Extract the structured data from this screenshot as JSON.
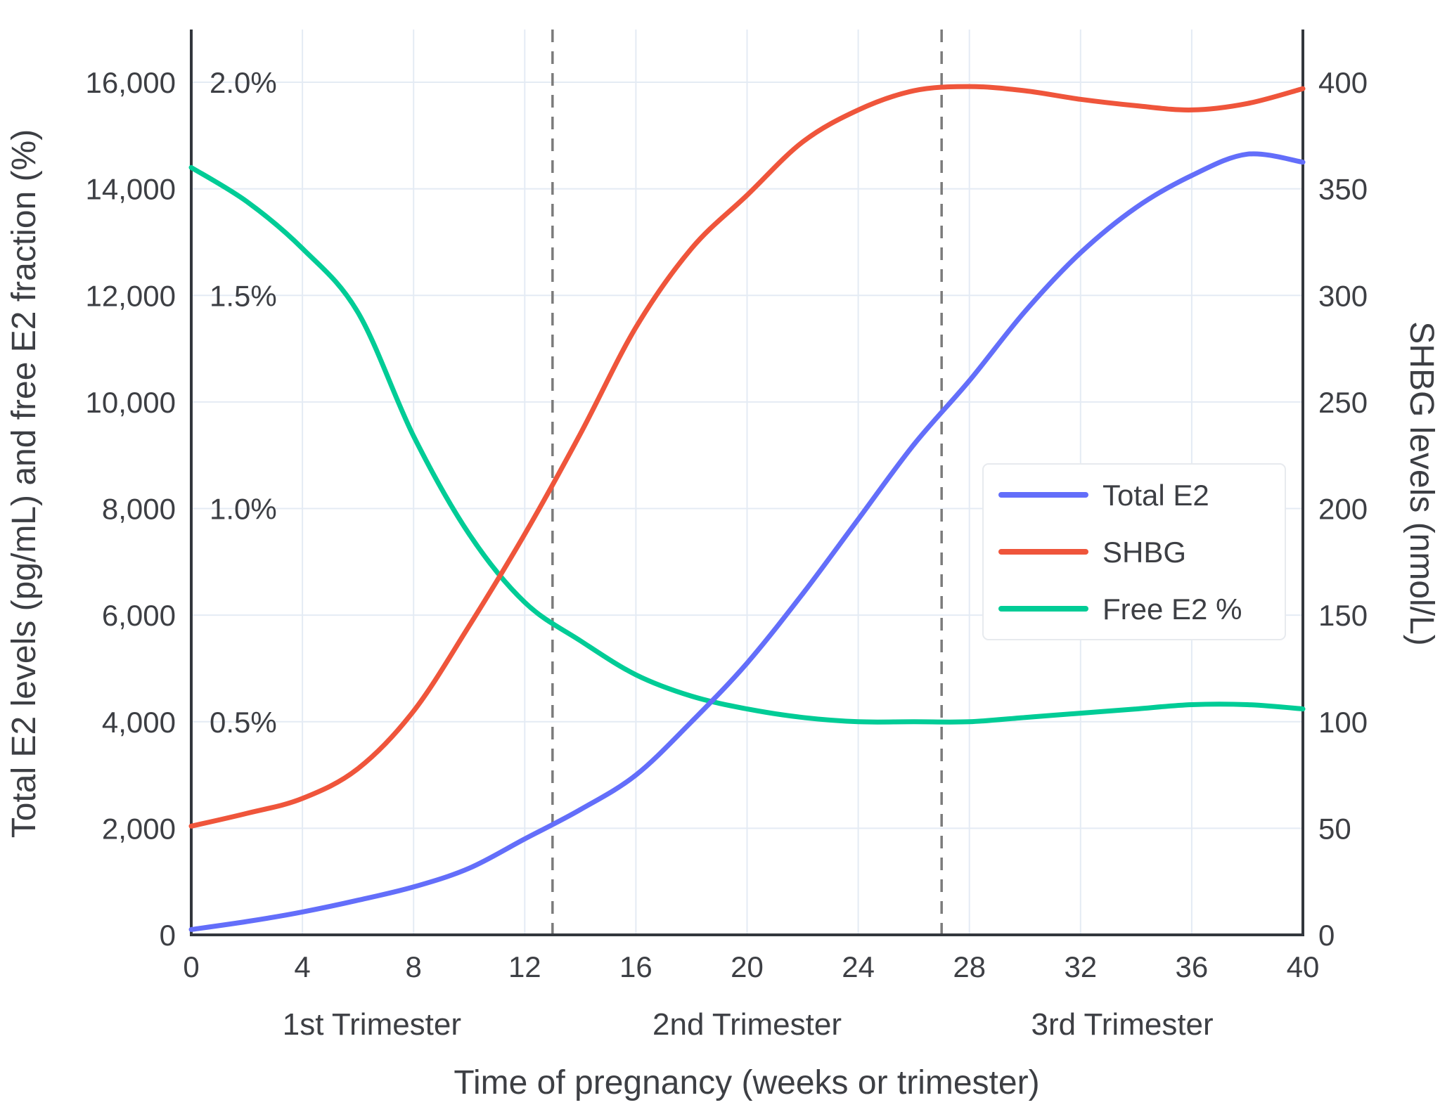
{
  "chart_data": {
    "type": "line",
    "title": "",
    "xlabel": "Time of pregnancy (weeks or trimester)",
    "ylabel_left": "Total E2 levels (pg/mL) and free E2 fraction (%)",
    "ylabel_right": "SHBG levels (nmol/L)",
    "x_range": [
      0,
      40
    ],
    "y_left_range": [
      0,
      16000
    ],
    "y_right_range": [
      0,
      400
    ],
    "y_percent_range": [
      0,
      2.0
    ],
    "grid": true,
    "x_ticks": [
      0,
      4,
      8,
      12,
      16,
      20,
      24,
      28,
      32,
      36,
      40
    ],
    "x_tick_labels": [
      "0",
      "4",
      "8",
      "12",
      "16",
      "20",
      "24",
      "28",
      "32",
      "36",
      "40"
    ],
    "y_left_ticks": [
      0,
      2000,
      4000,
      6000,
      8000,
      10000,
      12000,
      14000,
      16000
    ],
    "y_left_tick_labels": [
      "0",
      "2,000",
      "4,000",
      "6,000",
      "8,000",
      "10,000",
      "12,000",
      "14,000",
      "16,000"
    ],
    "y_right_ticks": [
      0,
      50,
      100,
      150,
      200,
      250,
      300,
      350,
      400
    ],
    "y_right_tick_labels": [
      "0",
      "50",
      "100",
      "150",
      "200",
      "250",
      "300",
      "350",
      "400"
    ],
    "percent_ticks": [
      {
        "percent": 0.5,
        "label": "0.5%"
      },
      {
        "percent": 1.0,
        "label": "1.0%"
      },
      {
        "percent": 1.5,
        "label": "1.5%"
      },
      {
        "percent": 2.0,
        "label": "2.0%"
      }
    ],
    "vlines": [
      {
        "x": 13
      },
      {
        "x": 27
      }
    ],
    "trimesters": [
      {
        "label": "1st Trimester",
        "x_center": 6.5
      },
      {
        "label": "2nd Trimester",
        "x_center": 20
      },
      {
        "label": "3rd Trimester",
        "x_center": 33.5
      }
    ],
    "x": [
      0,
      2,
      4,
      6,
      8,
      10,
      12,
      14,
      16,
      18,
      20,
      22,
      24,
      26,
      28,
      30,
      32,
      34,
      36,
      38,
      40
    ],
    "series": [
      {
        "name": "Total E2",
        "axis": "left",
        "color": "#636EFA",
        "values": [
          100,
          250,
          430,
          650,
          900,
          1250,
          1800,
          2350,
          3000,
          4000,
          5100,
          6400,
          7800,
          9200,
          10400,
          11700,
          12800,
          13650,
          14250,
          14650,
          14500
        ]
      },
      {
        "name": "SHBG",
        "axis": "right",
        "color": "#EF553B",
        "values": [
          51,
          57,
          64,
          78,
          105,
          145,
          188,
          235,
          285,
          322,
          347,
          372,
          387,
          396,
          398,
          396,
          392,
          389,
          387,
          390,
          397
        ]
      },
      {
        "name": "Free E2 %",
        "axis": "percent",
        "color": "#00CC96",
        "values": [
          1.8,
          1.72,
          1.61,
          1.46,
          1.17,
          0.94,
          0.78,
          0.69,
          0.61,
          0.56,
          0.53,
          0.51,
          0.5,
          0.5,
          0.5,
          0.51,
          0.52,
          0.53,
          0.54,
          0.54,
          0.53
        ]
      }
    ],
    "legend": {
      "position": "center-right"
    }
  }
}
